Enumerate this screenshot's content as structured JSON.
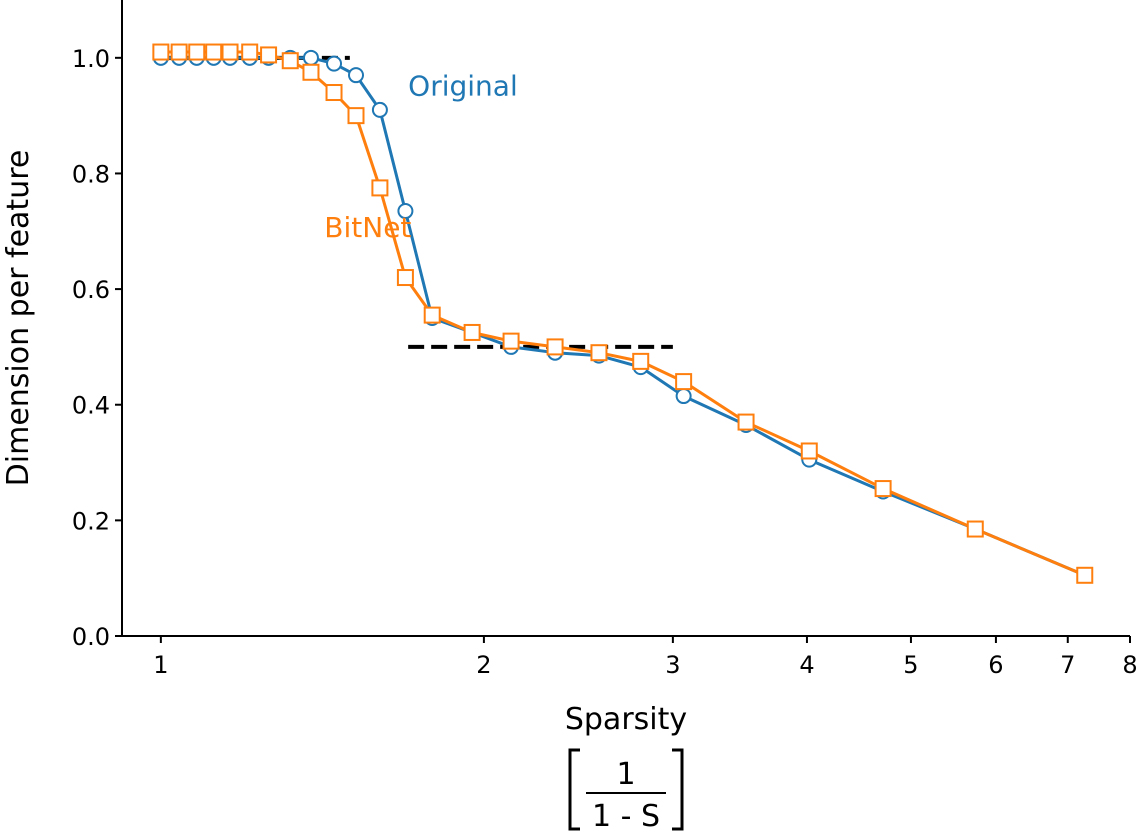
{
  "chart_data": {
    "type": "line",
    "xlabel": "Sparsity",
    "xlabel_formula": {
      "numerator": "1",
      "denominator": "1 - S"
    },
    "ylabel": "Dimension per feature",
    "xscale": "log",
    "xlim": [
      0.92,
      8
    ],
    "ylim": [
      0.0,
      1.1
    ],
    "xticks": [
      1,
      2,
      3,
      4,
      5,
      6,
      7,
      8
    ],
    "xtick_labels": [
      "1",
      "2",
      "3",
      "4",
      "5",
      "6",
      "7",
      "8"
    ],
    "yticks": [
      0.0,
      0.2,
      0.4,
      0.6,
      0.8,
      1.0
    ],
    "ytick_labels": [
      "0.0",
      "0.2",
      "0.4",
      "0.6",
      "0.8",
      "1.0"
    ],
    "grid": false,
    "series": [
      {
        "name": "Original",
        "color": "#1f77b4",
        "marker": "circle",
        "x": [
          1.0,
          1.04,
          1.08,
          1.12,
          1.16,
          1.21,
          1.26,
          1.32,
          1.38,
          1.45,
          1.52,
          1.6,
          1.69,
          1.79,
          1.95,
          2.12,
          2.33,
          2.56,
          2.8,
          3.07,
          3.51,
          4.02,
          4.71,
          5.74,
          7.26
        ],
        "y": [
          1.0,
          1.0,
          1.0,
          1.0,
          1.0,
          1.0,
          1.0,
          1.0,
          1.0,
          0.99,
          0.97,
          0.91,
          0.735,
          0.55,
          0.525,
          0.5,
          0.49,
          0.485,
          0.465,
          0.415,
          0.365,
          0.305,
          0.25,
          0.185,
          0.105
        ]
      },
      {
        "name": "BitNet",
        "color": "#ff7f0e",
        "marker": "square",
        "x": [
          1.0,
          1.04,
          1.08,
          1.12,
          1.16,
          1.21,
          1.26,
          1.32,
          1.38,
          1.45,
          1.52,
          1.6,
          1.69,
          1.79,
          1.95,
          2.12,
          2.33,
          2.56,
          2.8,
          3.07,
          3.51,
          4.02,
          4.71,
          5.74,
          7.26
        ],
        "y": [
          1.01,
          1.01,
          1.01,
          1.01,
          1.01,
          1.01,
          1.005,
          0.995,
          0.975,
          0.94,
          0.9,
          0.775,
          0.62,
          0.555,
          0.525,
          0.51,
          0.5,
          0.49,
          0.475,
          0.44,
          0.37,
          0.32,
          0.255,
          0.185,
          0.105
        ]
      }
    ],
    "reference_lines": [
      {
        "style": "dashed",
        "color": "#000000",
        "x": [
          1.0,
          1.5
        ],
        "y": 1.0
      },
      {
        "style": "dashed",
        "color": "#000000",
        "x": [
          1.7,
          3.0
        ],
        "y": 0.5
      }
    ],
    "annotations": [
      {
        "text": "Original",
        "color": "#1f77b4",
        "x": 1.7,
        "y": 0.935
      },
      {
        "text": "BitNet",
        "color": "#ff7f0e",
        "x": 1.42,
        "y": 0.69
      }
    ]
  }
}
